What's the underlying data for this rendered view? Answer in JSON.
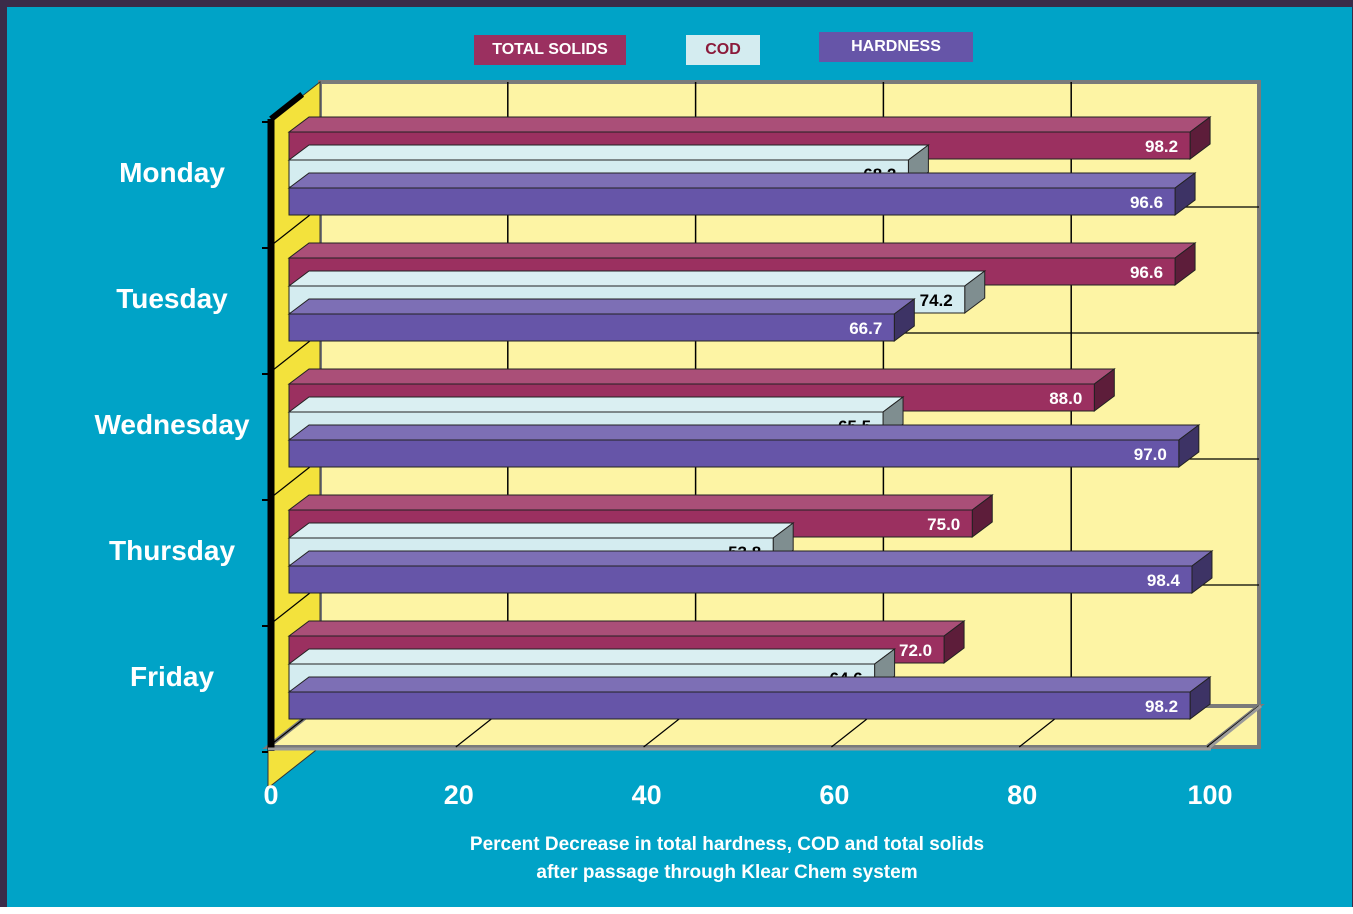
{
  "chart_data": {
    "type": "bar",
    "orientation": "horizontal",
    "style": "3d",
    "categories": [
      "Monday",
      "Tuesday",
      "Wednesday",
      "Thursday",
      "Friday"
    ],
    "series": [
      {
        "name": "TOTAL SOLIDS",
        "values": [
          98.2,
          96.6,
          88.0,
          75.0,
          72.0
        ],
        "labels": [
          "98.2",
          "96.6",
          "88.0",
          "75.0",
          "72.0"
        ],
        "color": "#9b3060",
        "label_color": "#ffffff"
      },
      {
        "name": "COD",
        "values": [
          68.2,
          74.2,
          65.5,
          53.8,
          64.6
        ],
        "labels": [
          "68.2",
          "74.2",
          "65.5",
          "53.8",
          "64.6"
        ],
        "color": "#d4ecf0",
        "label_color": "#000000"
      },
      {
        "name": "HARDNESS",
        "values": [
          96.6,
          66.7,
          97.0,
          98.4,
          98.2
        ],
        "labels": [
          "96.6",
          "66.7",
          "97.0",
          "98.4",
          "98.2"
        ],
        "color": "#6655a8",
        "label_color": "#ffffff"
      }
    ],
    "xlim": [
      0,
      100
    ],
    "xticks": [
      "0",
      "20",
      "40",
      "60",
      "80",
      "100"
    ],
    "xlabel": [
      "Percent Decrease in total hardness, COD and total solids",
      "after passage through Klear Chem system"
    ],
    "ylabel": "",
    "title": "",
    "grid": true,
    "legend_position": "top",
    "colors": {
      "background": "#00a3c7",
      "plot_wall": "#fdf4a4",
      "left_wall": "#f3e23c",
      "axis_text": "#ffffff",
      "category_text": "#ffffff"
    }
  }
}
